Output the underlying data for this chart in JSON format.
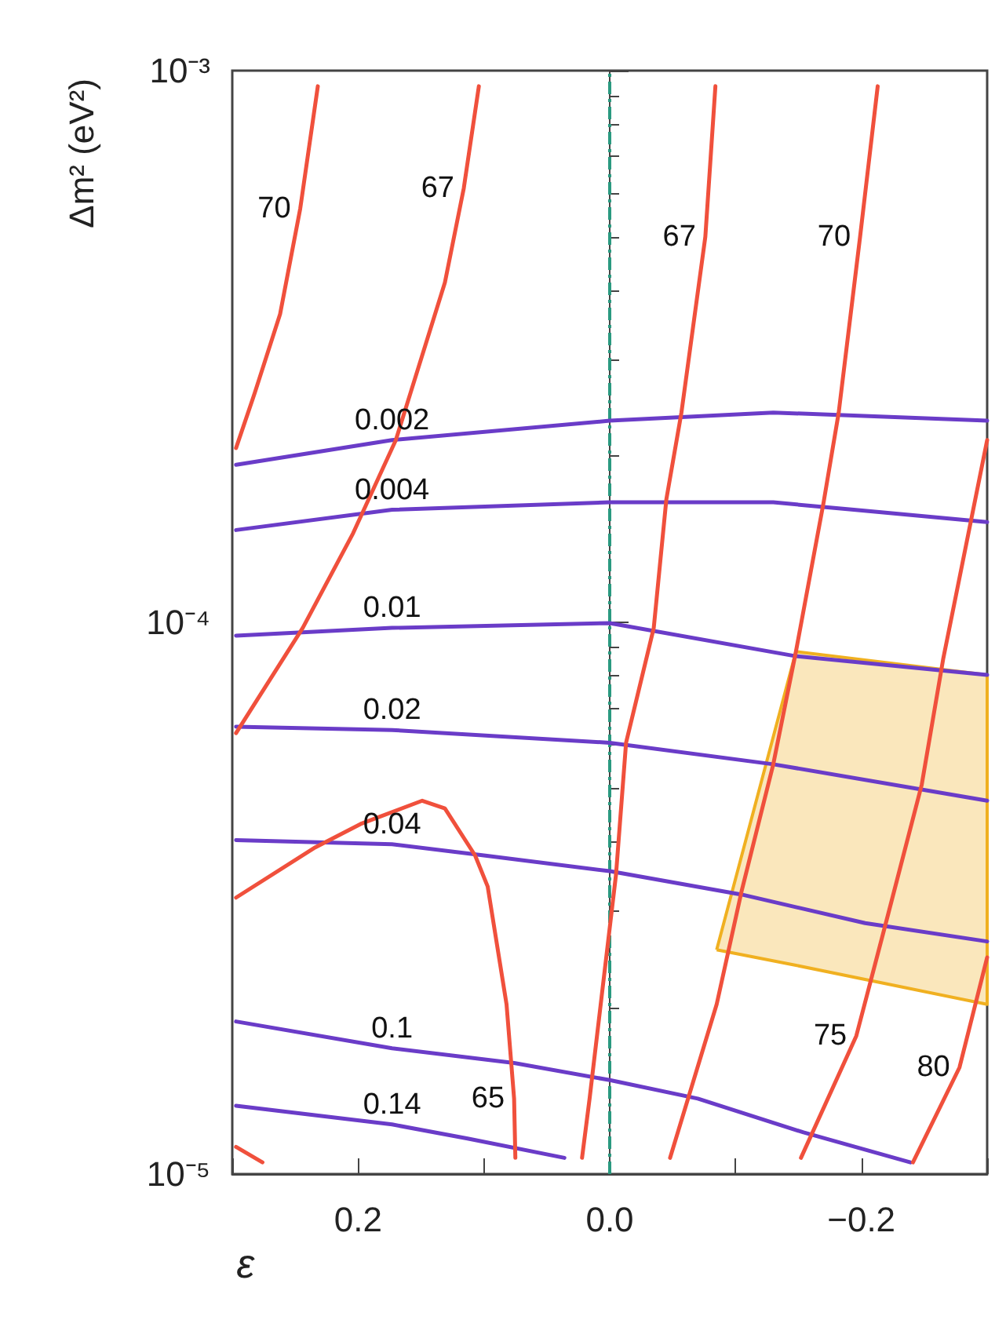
{
  "chart_data": {
    "type": "line",
    "xlabel": "ε",
    "ylabel": "Δm² (eV²)",
    "log": "y",
    "grid": false,
    "legend": false,
    "marker": "none",
    "line_style": "solid",
    "xlim": [
      0.3,
      -0.3
    ],
    "xticks": [
      {
        "value": 0.3,
        "label": null
      },
      {
        "value": 0.2,
        "label": "0.2"
      },
      {
        "value": 0.1,
        "label": null
      },
      {
        "value": 0,
        "label": "0.0"
      },
      {
        "value": -0.1,
        "label": null
      },
      {
        "value": -0.2,
        "label": "−0.2"
      },
      {
        "value": -0.3,
        "label": null
      }
    ],
    "ylim": [
      1e-05,
      0.001
    ],
    "yticks": [
      {
        "value": 1e-05,
        "label": "10⁻⁵"
      },
      {
        "value": 0.0001,
        "label": "10⁻⁴"
      },
      {
        "value": 0.001,
        "label": "10⁻³"
      }
    ],
    "series": [
      {
        "name": "0.002",
        "color": "#6a3cc8",
        "x": [
          0.297,
          0.173,
          0,
          -0.13,
          -0.194,
          -0.3
        ],
        "values": [
          0.000193,
          0.000214,
          0.000232,
          0.00024,
          0.000237,
          0.000232
        ]
      },
      {
        "name": "0.004",
        "color": "#6a3cc8",
        "x": [
          0.297,
          0.173,
          0,
          -0.13,
          -0.194,
          -0.3
        ],
        "values": [
          0.000147,
          0.00016,
          0.000165,
          0.000165,
          0.00016,
          0.000152
        ]
      },
      {
        "name": "0.01",
        "color": "#6a3cc8",
        "x": [
          0.297,
          0.173,
          0,
          -0.147,
          -0.3
        ],
        "values": [
          9.46e-05,
          9.77e-05,
          9.97e-05,
          8.69e-05,
          8.03e-05
        ]
      },
      {
        "name": "0.02",
        "color": "#6a3cc8",
        "x": [
          0.297,
          0.173,
          0,
          -0.13,
          -0.3
        ],
        "values": [
          6.47e-05,
          6.38e-05,
          6.05e-05,
          5.53e-05,
          4.75e-05
        ]
      },
      {
        "name": "0.04",
        "color": "#6a3cc8",
        "x": [
          0.297,
          0.173,
          0.1,
          0,
          -0.105,
          -0.203,
          -0.3
        ],
        "values": [
          4.03e-05,
          3.96e-05,
          3.78e-05,
          3.54e-05,
          3.21e-05,
          2.85e-05,
          2.64e-05
        ]
      },
      {
        "name": "0.1",
        "color": "#6a3cc8",
        "x": [
          0.297,
          0.173,
          0.076,
          0,
          -0.07,
          -0.154,
          -0.239
        ],
        "values": [
          1.89e-05,
          1.69e-05,
          1.59e-05,
          1.48e-05,
          1.37e-05,
          1.19e-05,
          1.05e-05
        ]
      },
      {
        "name": "0.14",
        "color": "#6a3cc8",
        "x": [
          0.297,
          0.173,
          0.113,
          0.036
        ],
        "values": [
          1.33e-05,
          1.23e-05,
          1.16e-05,
          1.07e-05
        ]
      },
      {
        "name": "70",
        "color": "#f0503c",
        "x": [
          0.232,
          0.246,
          0.262,
          0.282,
          0.297
        ],
        "values": [
          0.000937,
          0.000562,
          0.000362,
          0.000261,
          0.000207
        ]
      },
      {
        "name": "67",
        "color": "#f0503c",
        "x": [
          0.104,
          0.116,
          0.131,
          0.17,
          0.204,
          0.244,
          0.297
        ],
        "values": [
          0.000937,
          0.000612,
          0.000413,
          0.000214,
          0.000145,
          9.77e-05,
          6.3e-05
        ]
      },
      {
        "name": "65",
        "color": "#f0503c",
        "x": [
          0.075,
          0.076,
          0.082,
          0.097,
          0.107,
          0.131,
          0.149,
          0.198,
          0.234,
          0.297
        ],
        "values": [
          1.07e-05,
          1.37e-05,
          2.03e-05,
          3.32e-05,
          3.78e-05,
          4.6e-05,
          4.75e-05,
          4.31e-05,
          3.91e-05,
          3.17e-05
        ]
      },
      {
        "color": "#f0503c",
        "x": [
          0.297,
          0.276
        ],
        "values": [
          1.12e-05,
          1.05e-05
        ]
      },
      {
        "name": "67",
        "color": "#f0503c",
        "x": [
          -0.084,
          -0.076,
          -0.057,
          -0.045,
          -0.035,
          -0.013,
          -0.005,
          0.016,
          0.022
        ],
        "values": [
          0.000937,
          0.0005,
          0.00024,
          0.000167,
          9.77e-05,
          6.05e-05,
          3.49e-05,
          1.37e-05,
          1.07e-05
        ]
      },
      {
        "name": "70",
        "color": "#f0503c",
        "x": [
          -0.213,
          -0.199,
          -0.182,
          -0.17,
          -0.148,
          -0.13,
          -0.105,
          -0.085,
          -0.048
        ],
        "values": [
          0.000937,
          0.0005,
          0.00024,
          0.000165,
          8.85e-05,
          5.53e-05,
          3.27e-05,
          2.03e-05,
          1.07e-05
        ]
      },
      {
        "name": "75",
        "color": "#f0503c",
        "x": [
          -0.152,
          -0.196,
          -0.221,
          -0.248,
          -0.265,
          -0.3
        ],
        "values": [
          1.07e-05,
          1.78e-05,
          2.94e-05,
          5.08e-05,
          8.57e-05,
          0.000214
        ]
      },
      {
        "name": "80",
        "color": "#f0503c",
        "x": [
          -0.241,
          -0.278,
          -0.3
        ],
        "values": [
          1.05e-05,
          1.56e-05,
          2.47e-05
        ]
      },
      {
        "type": "area",
        "color": "#f0b020",
        "x": [
          -0.085,
          -0.148,
          -0.3,
          -0.3,
          -0.148,
          -0.085
        ],
        "values": [
          2.55e-05,
          8.85e-05,
          8.03e-05,
          2.03e-05,
          2.39e-05,
          2.55e-05
        ]
      }
    ],
    "ref_lines": [
      {
        "axis": "x",
        "value": 0,
        "color": "#2a9a80",
        "line_style": "dashdot"
      }
    ]
  }
}
